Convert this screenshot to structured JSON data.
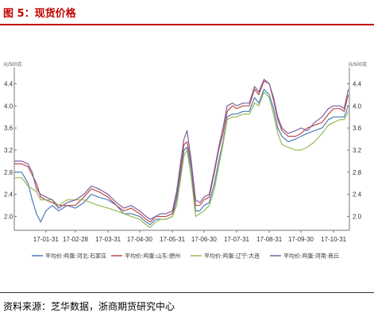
{
  "header": {
    "title": "图 5：现货价格"
  },
  "footer": {
    "source": "资料来源：芝华数据，浙商期货研究中心"
  },
  "chart_data": {
    "type": "line",
    "y_unit_left": "元/500克",
    "y_unit_right": "元/500克",
    "ylim": [
      1.75,
      4.55
    ],
    "yticks": [
      "2.0",
      "2.4",
      "2.8",
      "3.2",
      "3.6",
      "4.0",
      "4.4"
    ],
    "ytick_values": [
      2.0,
      2.4,
      2.8,
      3.2,
      3.6,
      4.0,
      4.4
    ],
    "xlim": [
      "2017-01-01",
      "2017-11-15"
    ],
    "xticks": [
      "17-01-31",
      "17-02-28",
      "17-03-31",
      "17-04-30",
      "17-05-31",
      "17-06-30",
      "17-07-31",
      "17-08-31",
      "17-09-30",
      "17-10-31"
    ],
    "xtick_dates": [
      "2017-01-31",
      "2017-02-28",
      "2017-03-31",
      "2017-04-30",
      "2017-05-31",
      "2017-06-30",
      "2017-07-31",
      "2017-08-31",
      "2017-09-30",
      "2017-10-31"
    ],
    "grid": false,
    "legend_position": "bottom",
    "series": [
      {
        "name": "平均价:鸡蛋:河北:石家庄",
        "color": "#4a7ebb",
        "points": [
          [
            "2017-01-01",
            2.8
          ],
          [
            "2017-01-08",
            2.8
          ],
          [
            "2017-01-14",
            2.6
          ],
          [
            "2017-01-18",
            2.3
          ],
          [
            "2017-01-22",
            2.05
          ],
          [
            "2017-01-26",
            1.9
          ],
          [
            "2017-01-31",
            2.1
          ],
          [
            "2017-02-06",
            2.2
          ],
          [
            "2017-02-12",
            2.1
          ],
          [
            "2017-02-20",
            2.2
          ],
          [
            "2017-02-28",
            2.15
          ],
          [
            "2017-03-08",
            2.25
          ],
          [
            "2017-03-15",
            2.4
          ],
          [
            "2017-03-22",
            2.35
          ],
          [
            "2017-03-31",
            2.3
          ],
          [
            "2017-04-08",
            2.2
          ],
          [
            "2017-04-15",
            2.05
          ],
          [
            "2017-04-22",
            2.05
          ],
          [
            "2017-04-30",
            2.0
          ],
          [
            "2017-05-06",
            1.9
          ],
          [
            "2017-05-10",
            1.85
          ],
          [
            "2017-05-15",
            1.95
          ],
          [
            "2017-05-20",
            1.95
          ],
          [
            "2017-05-25",
            1.95
          ],
          [
            "2017-05-31",
            2.0
          ],
          [
            "2017-06-04",
            2.3
          ],
          [
            "2017-06-08",
            2.8
          ],
          [
            "2017-06-11",
            3.2
          ],
          [
            "2017-06-14",
            3.25
          ],
          [
            "2017-06-18",
            2.85
          ],
          [
            "2017-06-22",
            2.1
          ],
          [
            "2017-06-26",
            2.1
          ],
          [
            "2017-06-30",
            2.2
          ],
          [
            "2017-07-05",
            2.25
          ],
          [
            "2017-07-10",
            2.6
          ],
          [
            "2017-07-14",
            3.0
          ],
          [
            "2017-07-18",
            3.35
          ],
          [
            "2017-07-22",
            3.8
          ],
          [
            "2017-07-27",
            3.85
          ],
          [
            "2017-07-31",
            3.85
          ],
          [
            "2017-08-06",
            3.9
          ],
          [
            "2017-08-12",
            3.9
          ],
          [
            "2017-08-17",
            4.15
          ],
          [
            "2017-08-21",
            4.05
          ],
          [
            "2017-08-26",
            4.3
          ],
          [
            "2017-08-31",
            4.2
          ],
          [
            "2017-09-04",
            3.95
          ],
          [
            "2017-09-08",
            3.6
          ],
          [
            "2017-09-12",
            3.45
          ],
          [
            "2017-09-18",
            3.35
          ],
          [
            "2017-09-25",
            3.4
          ],
          [
            "2017-09-30",
            3.45
          ],
          [
            "2017-10-06",
            3.5
          ],
          [
            "2017-10-13",
            3.55
          ],
          [
            "2017-10-20",
            3.6
          ],
          [
            "2017-10-26",
            3.75
          ],
          [
            "2017-10-31",
            3.8
          ],
          [
            "2017-11-06",
            3.8
          ],
          [
            "2017-11-10",
            3.8
          ],
          [
            "2017-11-14",
            4.0
          ]
        ]
      },
      {
        "name": "平均价:鸡蛋:山东:德州",
        "color": "#be4b48",
        "points": [
          [
            "2017-01-01",
            2.95
          ],
          [
            "2017-01-08",
            2.95
          ],
          [
            "2017-01-14",
            2.9
          ],
          [
            "2017-01-18",
            2.75
          ],
          [
            "2017-01-22",
            2.6
          ],
          [
            "2017-01-26",
            2.35
          ],
          [
            "2017-01-31",
            2.3
          ],
          [
            "2017-02-06",
            2.25
          ],
          [
            "2017-02-12",
            2.2
          ],
          [
            "2017-02-20",
            2.2
          ],
          [
            "2017-02-28",
            2.2
          ],
          [
            "2017-03-08",
            2.35
          ],
          [
            "2017-03-15",
            2.5
          ],
          [
            "2017-03-22",
            2.45
          ],
          [
            "2017-03-31",
            2.35
          ],
          [
            "2017-04-08",
            2.2
          ],
          [
            "2017-04-15",
            2.1
          ],
          [
            "2017-04-22",
            2.15
          ],
          [
            "2017-04-30",
            2.05
          ],
          [
            "2017-05-06",
            1.95
          ],
          [
            "2017-05-10",
            1.9
          ],
          [
            "2017-05-15",
            2.0
          ],
          [
            "2017-05-20",
            2.0
          ],
          [
            "2017-05-25",
            2.0
          ],
          [
            "2017-05-31",
            2.05
          ],
          [
            "2017-06-04",
            2.4
          ],
          [
            "2017-06-08",
            2.9
          ],
          [
            "2017-06-11",
            3.3
          ],
          [
            "2017-06-14",
            3.35
          ],
          [
            "2017-06-18",
            2.95
          ],
          [
            "2017-06-22",
            2.2
          ],
          [
            "2017-06-26",
            2.2
          ],
          [
            "2017-06-30",
            2.3
          ],
          [
            "2017-07-05",
            2.35
          ],
          [
            "2017-07-10",
            2.8
          ],
          [
            "2017-07-14",
            3.2
          ],
          [
            "2017-07-18",
            3.5
          ],
          [
            "2017-07-22",
            3.9
          ],
          [
            "2017-07-27",
            4.0
          ],
          [
            "2017-07-31",
            3.95
          ],
          [
            "2017-08-06",
            4.0
          ],
          [
            "2017-08-12",
            4.0
          ],
          [
            "2017-08-17",
            4.3
          ],
          [
            "2017-08-21",
            4.2
          ],
          [
            "2017-08-26",
            4.45
          ],
          [
            "2017-08-31",
            4.4
          ],
          [
            "2017-09-04",
            4.1
          ],
          [
            "2017-09-08",
            3.75
          ],
          [
            "2017-09-12",
            3.55
          ],
          [
            "2017-09-18",
            3.45
          ],
          [
            "2017-09-25",
            3.45
          ],
          [
            "2017-09-30",
            3.5
          ],
          [
            "2017-10-06",
            3.6
          ],
          [
            "2017-10-13",
            3.65
          ],
          [
            "2017-10-20",
            3.7
          ],
          [
            "2017-10-26",
            3.85
          ],
          [
            "2017-10-31",
            3.95
          ],
          [
            "2017-11-06",
            3.95
          ],
          [
            "2017-11-10",
            3.9
          ],
          [
            "2017-11-14",
            4.2
          ]
        ]
      },
      {
        "name": "平均价:鸡蛋:辽宁:大连",
        "color": "#98b954",
        "points": [
          [
            "2017-01-01",
            2.7
          ],
          [
            "2017-01-08",
            2.7
          ],
          [
            "2017-01-14",
            2.55
          ],
          [
            "2017-01-18",
            2.5
          ],
          [
            "2017-01-22",
            2.45
          ],
          [
            "2017-01-26",
            2.3
          ],
          [
            "2017-01-31",
            2.3
          ],
          [
            "2017-02-06",
            2.3
          ],
          [
            "2017-02-12",
            2.2
          ],
          [
            "2017-02-20",
            2.3
          ],
          [
            "2017-02-28",
            2.3
          ],
          [
            "2017-03-08",
            2.3
          ],
          [
            "2017-03-15",
            2.25
          ],
          [
            "2017-03-22",
            2.2
          ],
          [
            "2017-03-31",
            2.15
          ],
          [
            "2017-04-08",
            2.1
          ],
          [
            "2017-04-15",
            2.05
          ],
          [
            "2017-04-22",
            2.0
          ],
          [
            "2017-04-30",
            1.95
          ],
          [
            "2017-05-06",
            1.85
          ],
          [
            "2017-05-10",
            1.8
          ],
          [
            "2017-05-15",
            1.9
          ],
          [
            "2017-05-20",
            1.95
          ],
          [
            "2017-05-25",
            1.95
          ],
          [
            "2017-05-31",
            2.0
          ],
          [
            "2017-06-04",
            2.2
          ],
          [
            "2017-06-08",
            2.7
          ],
          [
            "2017-06-11",
            3.1
          ],
          [
            "2017-06-14",
            3.2
          ],
          [
            "2017-06-18",
            2.7
          ],
          [
            "2017-06-22",
            2.0
          ],
          [
            "2017-06-26",
            2.05
          ],
          [
            "2017-06-30",
            2.1
          ],
          [
            "2017-07-05",
            2.2
          ],
          [
            "2017-07-10",
            2.5
          ],
          [
            "2017-07-14",
            2.9
          ],
          [
            "2017-07-18",
            3.3
          ],
          [
            "2017-07-22",
            3.75
          ],
          [
            "2017-07-27",
            3.8
          ],
          [
            "2017-07-31",
            3.8
          ],
          [
            "2017-08-06",
            3.85
          ],
          [
            "2017-08-12",
            3.85
          ],
          [
            "2017-08-17",
            4.05
          ],
          [
            "2017-08-21",
            4.0
          ],
          [
            "2017-08-26",
            4.25
          ],
          [
            "2017-08-31",
            4.15
          ],
          [
            "2017-09-04",
            3.85
          ],
          [
            "2017-09-08",
            3.5
          ],
          [
            "2017-09-12",
            3.3
          ],
          [
            "2017-09-18",
            3.25
          ],
          [
            "2017-09-25",
            3.2
          ],
          [
            "2017-09-30",
            3.2
          ],
          [
            "2017-10-06",
            3.25
          ],
          [
            "2017-10-13",
            3.35
          ],
          [
            "2017-10-20",
            3.5
          ],
          [
            "2017-10-26",
            3.65
          ],
          [
            "2017-10-31",
            3.7
          ],
          [
            "2017-11-06",
            3.75
          ],
          [
            "2017-11-10",
            3.75
          ],
          [
            "2017-11-14",
            3.9
          ]
        ]
      },
      {
        "name": "平均价:鸡蛋:河南:商丘",
        "color": "#7d60a0",
        "points": [
          [
            "2017-01-01",
            3.0
          ],
          [
            "2017-01-08",
            3.0
          ],
          [
            "2017-01-14",
            2.95
          ],
          [
            "2017-01-18",
            2.8
          ],
          [
            "2017-01-22",
            2.5
          ],
          [
            "2017-01-26",
            2.4
          ],
          [
            "2017-01-31",
            2.35
          ],
          [
            "2017-02-06",
            2.3
          ],
          [
            "2017-02-12",
            2.15
          ],
          [
            "2017-02-20",
            2.25
          ],
          [
            "2017-02-28",
            2.3
          ],
          [
            "2017-03-08",
            2.4
          ],
          [
            "2017-03-15",
            2.55
          ],
          [
            "2017-03-22",
            2.5
          ],
          [
            "2017-03-31",
            2.4
          ],
          [
            "2017-04-08",
            2.25
          ],
          [
            "2017-04-15",
            2.15
          ],
          [
            "2017-04-22",
            2.2
          ],
          [
            "2017-04-30",
            2.1
          ],
          [
            "2017-05-06",
            2.0
          ],
          [
            "2017-05-10",
            1.95
          ],
          [
            "2017-05-15",
            2.0
          ],
          [
            "2017-05-20",
            2.05
          ],
          [
            "2017-05-25",
            2.05
          ],
          [
            "2017-05-31",
            2.1
          ],
          [
            "2017-06-04",
            2.45
          ],
          [
            "2017-06-08",
            3.0
          ],
          [
            "2017-06-11",
            3.4
          ],
          [
            "2017-06-14",
            3.55
          ],
          [
            "2017-06-18",
            3.0
          ],
          [
            "2017-06-22",
            2.3
          ],
          [
            "2017-06-26",
            2.25
          ],
          [
            "2017-06-30",
            2.35
          ],
          [
            "2017-07-05",
            2.4
          ],
          [
            "2017-07-10",
            2.85
          ],
          [
            "2017-07-14",
            3.25
          ],
          [
            "2017-07-18",
            3.6
          ],
          [
            "2017-07-22",
            4.0
          ],
          [
            "2017-07-27",
            4.05
          ],
          [
            "2017-07-31",
            4.0
          ],
          [
            "2017-08-06",
            4.05
          ],
          [
            "2017-08-12",
            4.05
          ],
          [
            "2017-08-17",
            4.35
          ],
          [
            "2017-08-21",
            4.25
          ],
          [
            "2017-08-26",
            4.48
          ],
          [
            "2017-08-31",
            4.4
          ],
          [
            "2017-09-04",
            4.15
          ],
          [
            "2017-09-08",
            3.8
          ],
          [
            "2017-09-12",
            3.6
          ],
          [
            "2017-09-18",
            3.5
          ],
          [
            "2017-09-25",
            3.55
          ],
          [
            "2017-09-30",
            3.6
          ],
          [
            "2017-10-06",
            3.55
          ],
          [
            "2017-10-13",
            3.7
          ],
          [
            "2017-10-20",
            3.8
          ],
          [
            "2017-10-26",
            3.95
          ],
          [
            "2017-10-31",
            4.0
          ],
          [
            "2017-11-06",
            4.0
          ],
          [
            "2017-11-10",
            3.95
          ],
          [
            "2017-11-14",
            4.3
          ]
        ]
      }
    ]
  }
}
